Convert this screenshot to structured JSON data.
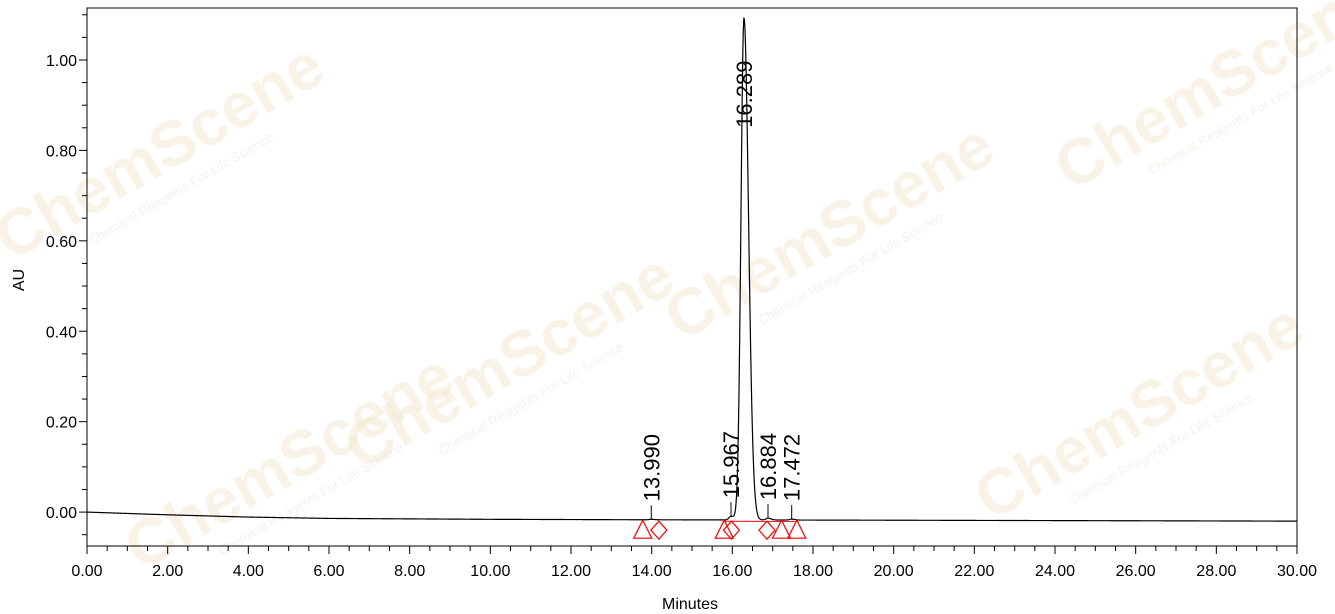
{
  "chart_data": {
    "type": "line",
    "title": "",
    "xlabel": "Minutes",
    "ylabel": "AU",
    "xlim": [
      0,
      30
    ],
    "ylim": [
      -0.075,
      1.115
    ],
    "x_ticks": [
      "0.00",
      "2.00",
      "4.00",
      "6.00",
      "8.00",
      "10.00",
      "12.00",
      "14.00",
      "16.00",
      "18.00",
      "20.00",
      "22.00",
      "24.00",
      "26.00",
      "28.00",
      "30.00"
    ],
    "y_ticks": [
      "0.00",
      "0.20",
      "0.40",
      "0.60",
      "0.80",
      "1.00"
    ],
    "grid": false,
    "series": [
      {
        "baseline": {
          "x": [
            0,
            2,
            4,
            6,
            10,
            14,
            20,
            30
          ],
          "y": [
            0.0,
            -0.006,
            -0.011,
            -0.014,
            -0.016,
            -0.017,
            -0.018,
            -0.02
          ]
        },
        "peaks": [
          {
            "rt": 13.99,
            "height": 0.001,
            "width": 0.05
          },
          {
            "rt": 15.967,
            "height": 0.008,
            "width": 0.05
          },
          {
            "rt": 16.289,
            "height": 1.11,
            "width": 0.075
          },
          {
            "rt": 16.884,
            "height": 0.004,
            "width": 0.05
          },
          {
            "rt": 17.472,
            "height": 0.002,
            "width": 0.05
          }
        ]
      }
    ],
    "peak_labels": [
      {
        "text": "13.990",
        "x": 13.99
      },
      {
        "text": "15.967",
        "x": 15.967
      },
      {
        "text": "16.289",
        "x": 16.289
      },
      {
        "text": "16.884",
        "x": 16.884
      },
      {
        "text": "17.472",
        "x": 17.472
      }
    ],
    "integration_markers": [
      {
        "shape": "triangle",
        "x": 13.78
      },
      {
        "shape": "diamond",
        "x": 14.18
      },
      {
        "shape": "triangle",
        "x": 15.8
      },
      {
        "shape": "diamond",
        "x": 15.98
      },
      {
        "shape": "diamond",
        "x": 16.86
      },
      {
        "shape": "triangle",
        "x": 17.22
      },
      {
        "shape": "triangle",
        "x": 17.6
      }
    ],
    "colors": {
      "trace": "#000000",
      "markers": "#ff0000",
      "watermark": "#f3e3b5"
    }
  },
  "watermark": {
    "brand": "ChemScene",
    "tagline": "Chemical Reagents For Life Science"
  }
}
